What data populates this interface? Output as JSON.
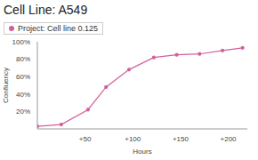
{
  "chart_data": {
    "type": "line",
    "title": "Cell Line: A549",
    "x_label": "Hours",
    "y_label": "Confluency",
    "x": [
      0,
      25,
      53,
      72,
      96,
      122,
      146,
      170,
      194,
      215
    ],
    "series": [
      {
        "name": "Project: Cell line 0.125",
        "color": "#d0609e",
        "marker": "circle",
        "values": [
          3,
          5,
          22,
          48,
          68,
          82,
          85,
          86,
          90,
          93
        ]
      }
    ],
    "xlim": [
      0,
      220
    ],
    "xticks": [
      {
        "value": 50,
        "label": "+50"
      },
      {
        "value": 100,
        "label": "+100"
      },
      {
        "value": 150,
        "label": "+150"
      },
      {
        "value": 200,
        "label": "+200"
      }
    ],
    "ylim": [
      0,
      100
    ],
    "yticks": [
      {
        "value": 20,
        "label": "20%"
      },
      {
        "value": 40,
        "label": "40%"
      },
      {
        "value": 60,
        "label": "60%"
      },
      {
        "value": 80,
        "label": "80%"
      },
      {
        "value": 100,
        "label": "100%"
      }
    ],
    "grid": false,
    "legend": "top-left"
  }
}
